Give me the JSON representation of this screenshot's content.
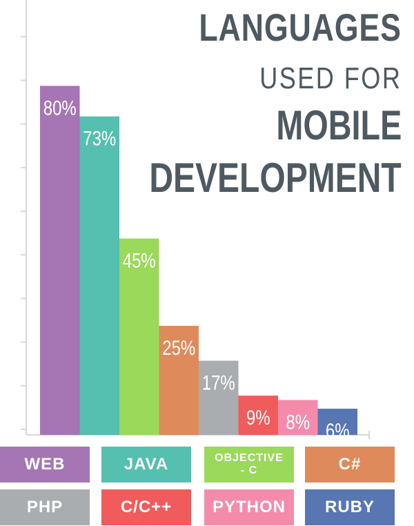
{
  "chart_data": {
    "type": "bar",
    "title": [
      "LANGUAGES",
      "USED FOR",
      "MOBILE",
      "DEVELOPMENT"
    ],
    "categories": [
      "WEB",
      "JAVA",
      "OBJECTIVE - C",
      "C#",
      "PHP",
      "C/C++",
      "PYTHON",
      "RUBY"
    ],
    "values": [
      80,
      73,
      45,
      25,
      17,
      9,
      8,
      6
    ],
    "data_labels": [
      "80%",
      "73%",
      "45%",
      "25%",
      "17%",
      "9%",
      "8%",
      "6%"
    ],
    "colors": [
      "#a576b3",
      "#55bfb0",
      "#9bd95a",
      "#df8a5a",
      "#a9adb0",
      "#f05b5b",
      "#f58bab",
      "#5776b2"
    ],
    "ylim": [
      0,
      100
    ],
    "grid": false,
    "legend": "bottom"
  },
  "legend": {
    "items": [
      {
        "label": "WEB",
        "color": "#a576b3"
      },
      {
        "label": "JAVA",
        "color": "#55bfb0"
      },
      {
        "label": "OBJECTIVE\n- C",
        "color": "#9bd95a"
      },
      {
        "label": "C#",
        "color": "#df8a5a"
      },
      {
        "label": "PHP",
        "color": "#a9adb0"
      },
      {
        "label": "C/C++",
        "color": "#f05b5b"
      },
      {
        "label": "PYTHON",
        "color": "#f58bab"
      },
      {
        "label": "RUBY",
        "color": "#5776b2"
      }
    ]
  }
}
